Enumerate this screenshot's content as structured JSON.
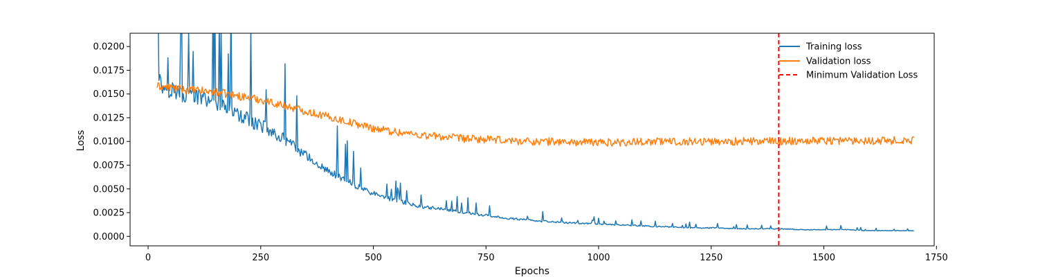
{
  "chart_data": {
    "type": "line",
    "title": "",
    "xlabel": "Epochs",
    "ylabel": "Loss",
    "xlim": [
      -40,
      1745
    ],
    "ylim": [
      -0.001,
      0.0214
    ],
    "xticks": [
      0,
      250,
      500,
      750,
      1000,
      1250,
      1500,
      1750
    ],
    "xtick_labels": [
      "0",
      "250",
      "500",
      "750",
      "1000",
      "1250",
      "1500",
      "1750"
    ],
    "yticks": [
      0.0,
      0.0025,
      0.005,
      0.0075,
      0.01,
      0.0125,
      0.015,
      0.0175,
      0.02
    ],
    "ytick_labels": [
      "0.0000",
      "0.0025",
      "0.0050",
      "0.0075",
      "0.0100",
      "0.0125",
      "0.0150",
      "0.0175",
      "0.0200"
    ],
    "grid": false,
    "legend_position": "top-right",
    "series": [
      {
        "name": "Training loss",
        "color": "#1f77b4",
        "x": [
          20,
          25,
          30,
          40,
          50,
          60,
          75,
          90,
          100,
          110,
          125,
          150,
          175,
          200,
          225,
          250,
          265,
          275,
          300,
          325,
          350,
          375,
          400,
          425,
          450,
          475,
          500,
          525,
          550,
          575,
          600,
          650,
          700,
          750,
          800,
          850,
          900,
          950,
          1000,
          1050,
          1100,
          1150,
          1200,
          1250,
          1300,
          1350,
          1400,
          1450,
          1500,
          1550,
          1600,
          1650,
          1700
        ],
        "y": [
          0.0197,
          0.0165,
          0.0158,
          0.0156,
          0.0155,
          0.0153,
          0.015,
          0.0149,
          0.0148,
          0.0147,
          0.0144,
          0.014,
          0.0135,
          0.0128,
          0.0122,
          0.0117,
          0.0113,
          0.011,
          0.0103,
          0.0094,
          0.0085,
          0.0077,
          0.0069,
          0.0062,
          0.0056,
          0.005,
          0.0045,
          0.0041,
          0.0038,
          0.0035,
          0.0032,
          0.0029,
          0.0025,
          0.0022,
          0.0019,
          0.0017,
          0.0015,
          0.0014,
          0.0013,
          0.0012,
          0.0011,
          0.001,
          0.0009,
          0.0009,
          0.0008,
          0.0008,
          0.0008,
          0.0007,
          0.0007,
          0.0007,
          0.0006,
          0.0006,
          0.0006
        ]
      },
      {
        "name": "Validation loss",
        "color": "#ff7f0e",
        "x": [
          20,
          50,
          75,
          100,
          125,
          150,
          175,
          200,
          225,
          250,
          275,
          300,
          325,
          350,
          375,
          400,
          425,
          450,
          475,
          500,
          550,
          600,
          650,
          700,
          750,
          800,
          850,
          900,
          950,
          1000,
          1050,
          1100,
          1150,
          1200,
          1250,
          1300,
          1350,
          1400,
          1450,
          1500,
          1550,
          1600,
          1650,
          1700
        ],
        "y": [
          0.0158,
          0.0157,
          0.0155,
          0.0154,
          0.0153,
          0.0152,
          0.015,
          0.0148,
          0.0146,
          0.0144,
          0.0141,
          0.0138,
          0.0135,
          0.0132,
          0.0129,
          0.0126,
          0.0123,
          0.012,
          0.0117,
          0.0114,
          0.011,
          0.0107,
          0.0105,
          0.0103,
          0.0102,
          0.0101,
          0.01,
          0.01,
          0.0099,
          0.0099,
          0.0099,
          0.01,
          0.01,
          0.01,
          0.01,
          0.01,
          0.01,
          0.01,
          0.0101,
          0.0101,
          0.0101,
          0.0101,
          0.0101,
          0.0101
        ]
      }
    ],
    "vline": {
      "name": "Minimum Validation Loss",
      "x": 1400,
      "color": "#ff0000",
      "style": "dashed"
    }
  }
}
